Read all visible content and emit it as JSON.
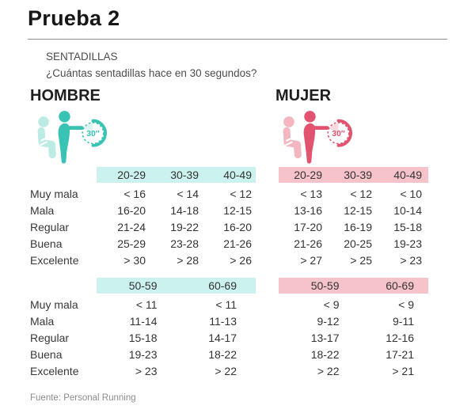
{
  "page": {
    "title": "Prueba 2",
    "subtitle_line1": "SENTADILLAS",
    "subtitle_line2": "¿Cuántas sentadillas hace en 30 segundos?",
    "source": "Fuente: Personal Running"
  },
  "sections": {
    "male": {
      "label": "HOMBRE"
    },
    "female": {
      "label": "MUJER"
    }
  },
  "icons": {
    "timer_label": "30″",
    "male_icon": "man-squatting-with-30s-stopwatch",
    "female_icon": "woman-squatting-with-30s-stopwatch"
  },
  "colors": {
    "male_accent": "#38c3b4",
    "male_light": "#bcebe5",
    "male_header_bg": "#cbf2ee",
    "female_accent": "#e25370",
    "female_light": "#f4b6c1",
    "female_header_bg": "#f6c3ca"
  },
  "row_labels": [
    "Muy mala",
    "Mala",
    "Regular",
    "Buena",
    "Excelente"
  ],
  "tables": [
    {
      "age_groups": [
        "20-29",
        "30-39",
        "40-49"
      ],
      "male": {
        "rows": [
          [
            "< 16",
            "< 14",
            "< 12"
          ],
          [
            "16-20",
            "14-18",
            "12-15"
          ],
          [
            "21-24",
            "19-22",
            "16-20"
          ],
          [
            "25-29",
            "23-28",
            "21-26"
          ],
          [
            "> 30",
            "> 28",
            "> 26"
          ]
        ]
      },
      "female": {
        "rows": [
          [
            "< 13",
            "< 12",
            "< 10"
          ],
          [
            "13-16",
            "12-15",
            "10-14"
          ],
          [
            "17-20",
            "16-19",
            "15-18"
          ],
          [
            "21-26",
            "20-25",
            "19-23"
          ],
          [
            "> 27",
            "> 25",
            "> 23"
          ]
        ]
      }
    },
    {
      "age_groups": [
        "50-59",
        "60-69"
      ],
      "male": {
        "rows": [
          [
            "< 11",
            "< 11"
          ],
          [
            "11-14",
            "11-13"
          ],
          [
            "15-18",
            "14-17"
          ],
          [
            "19-23",
            "18-22"
          ],
          [
            "> 23",
            "> 22"
          ]
        ]
      },
      "female": {
        "rows": [
          [
            "< 9",
            "< 9"
          ],
          [
            "9-12",
            "9-11"
          ],
          [
            "13-17",
            "12-16"
          ],
          [
            "18-22",
            "17-21"
          ],
          [
            "> 22",
            "> 21"
          ]
        ]
      }
    }
  ]
}
